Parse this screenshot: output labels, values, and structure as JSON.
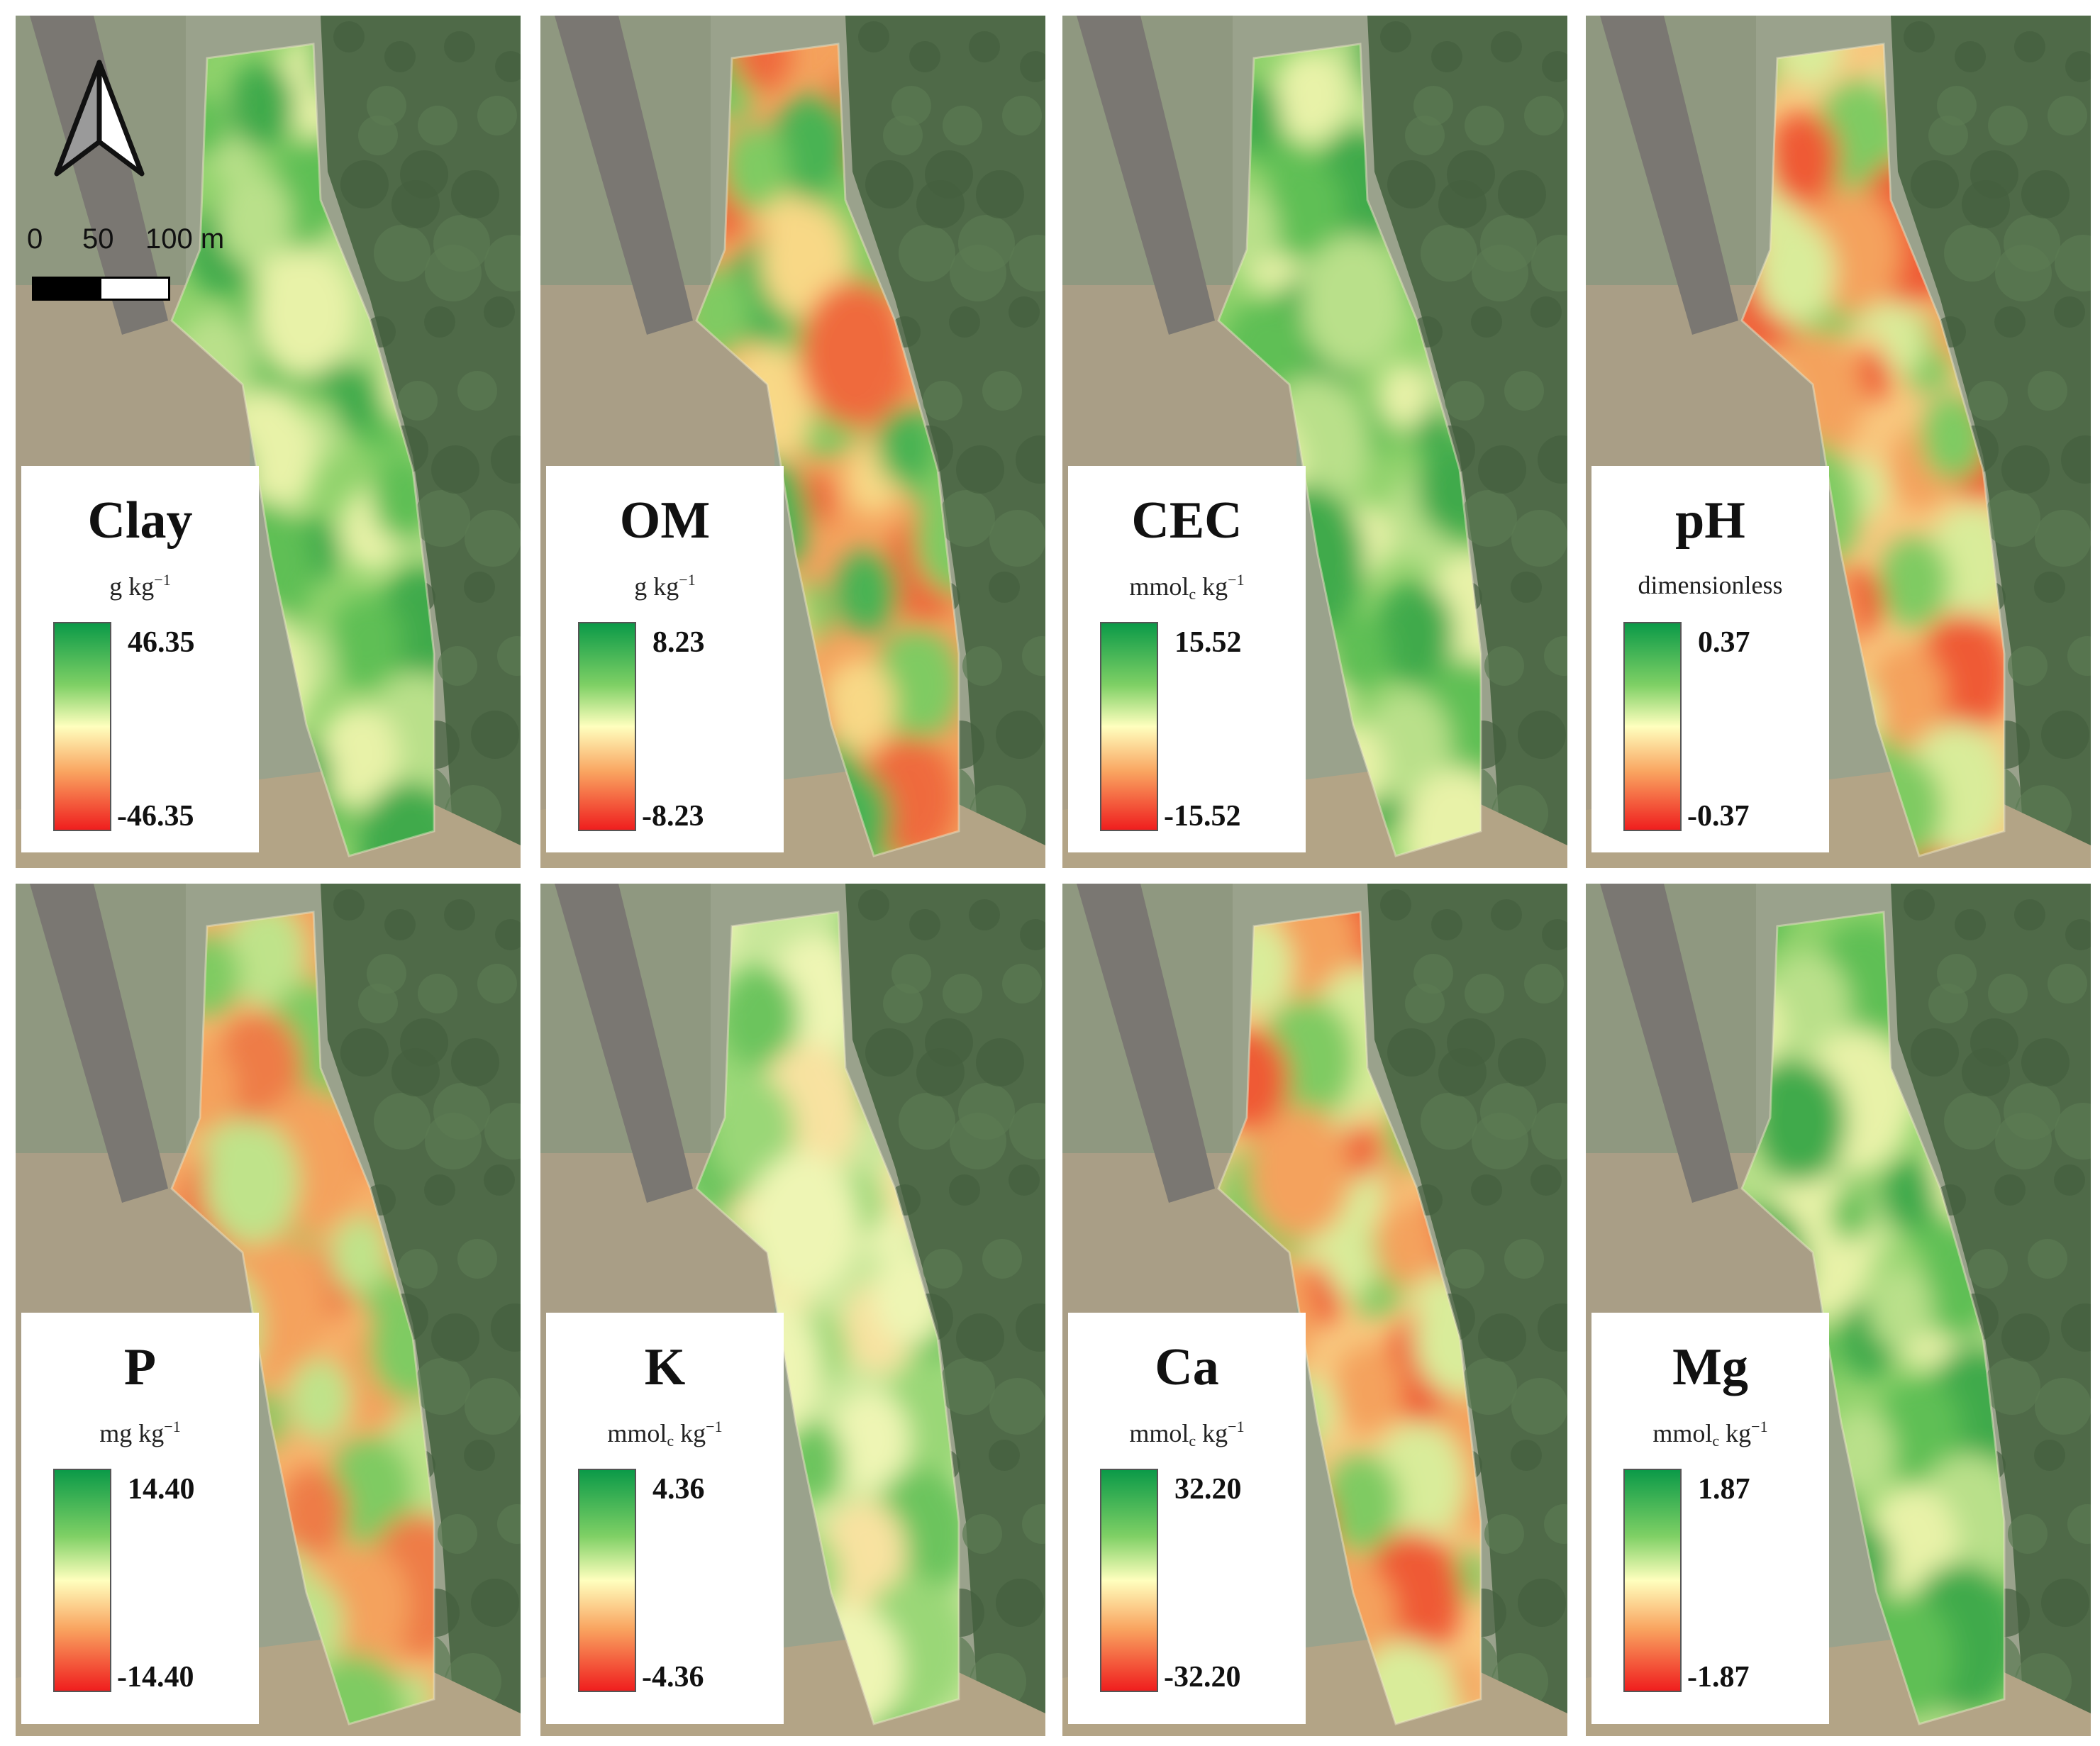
{
  "north_arrow": {
    "icon": "north-arrow-icon"
  },
  "scale_bar": {
    "labels": [
      "0",
      "50",
      "100 m"
    ]
  },
  "legend_colors": {
    "high": "#0b9a48",
    "mid": "#ffffbe",
    "low": "#ef1e1e"
  },
  "panels": [
    {
      "title": "Clay",
      "unit_html": "g kg<sup>−1</sup>",
      "max": "46.35",
      "min": "-46.35",
      "tone": "green"
    },
    {
      "title": "OM",
      "unit_html": "g kg<sup>−1</sup>",
      "max": "8.23",
      "min": "-8.23",
      "tone": "mixed"
    },
    {
      "title": "CEC",
      "unit_html": "mmol<sub>c</sub> kg<sup>−1</sup>",
      "max": "15.52",
      "min": "-15.52",
      "tone": "green"
    },
    {
      "title": "pH",
      "unit_html": "dimensionless",
      "max": "0.37",
      "min": "-0.37",
      "tone": "orange"
    },
    {
      "title": "P",
      "unit_html": "mg kg<sup>−1</sup>",
      "max": "14.40",
      "min": "-14.40",
      "tone": "band"
    },
    {
      "title": "K",
      "unit_html": "mmol<sub>c</sub> kg<sup>−1</sup>",
      "max": "4.36",
      "min": "-4.36",
      "tone": "lightgreen"
    },
    {
      "title": "Ca",
      "unit_html": "mmol<sub>c</sub> kg<sup>−1</sup>",
      "max": "32.20",
      "min": "-32.20",
      "tone": "orange"
    },
    {
      "title": "Mg",
      "unit_html": "mmol<sub>c</sub> kg<sup>−1</sup>",
      "max": "1.87",
      "min": "-1.87",
      "tone": "green"
    }
  ]
}
